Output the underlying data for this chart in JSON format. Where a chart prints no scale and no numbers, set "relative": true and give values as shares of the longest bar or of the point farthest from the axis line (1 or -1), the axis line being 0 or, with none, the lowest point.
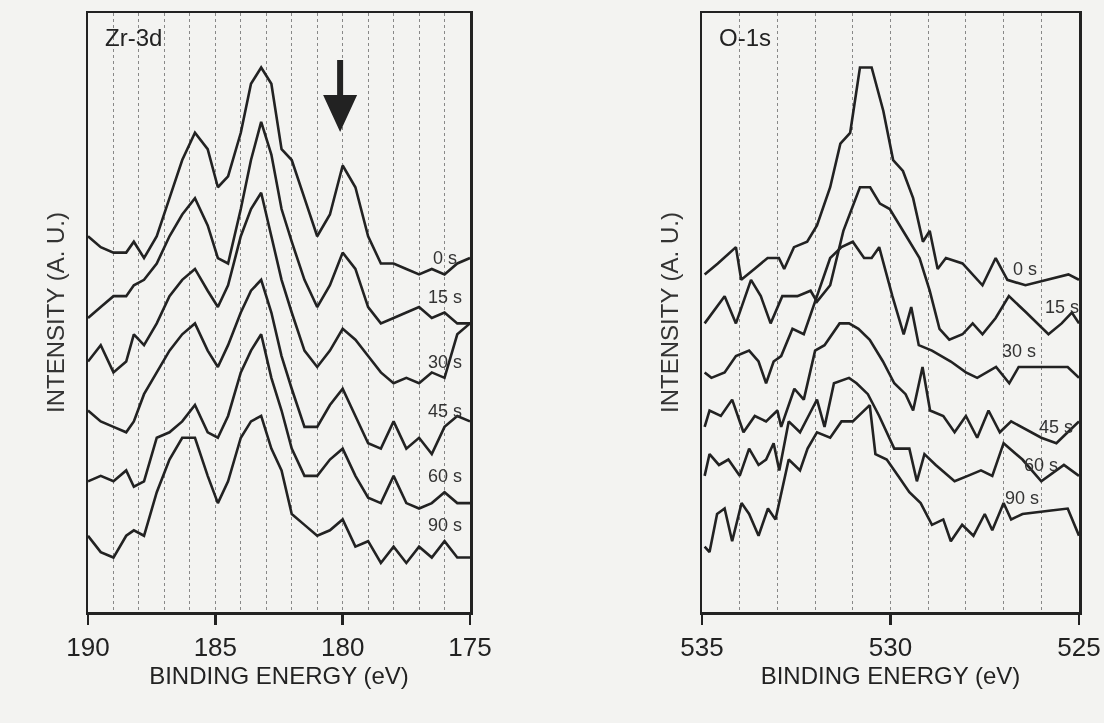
{
  "chart_data": [
    {
      "type": "line",
      "relative": true,
      "xlabel": "BINDING ENERGY (eV)",
      "ylabel": "INTENSITY (A. U.)",
      "annotations": [
        "Zr-3d"
      ],
      "xlim": [
        190,
        175
      ],
      "xticks": [
        190,
        {
          "value": 189,
          "label": null
        },
        {
          "value": 188,
          "label": null
        },
        {
          "value": 187,
          "label": null
        },
        {
          "value": 186,
          "label": null
        },
        185,
        {
          "value": 184,
          "label": null
        },
        {
          "value": 183,
          "label": null
        },
        {
          "value": 182,
          "label": null
        },
        {
          "value": 181,
          "label": null
        },
        180,
        {
          "value": 179,
          "label": null
        },
        {
          "value": 178,
          "label": null
        },
        {
          "value": 177,
          "label": null
        },
        {
          "value": 176,
          "label": null
        },
        175
      ],
      "tick_labels": "x",
      "grid": "x",
      "legend": false,
      "marker": "none",
      "line_style": "solid",
      "x": [
        190,
        189.5,
        189,
        188.5,
        188.2,
        187.8,
        187.3,
        186.8,
        186.3,
        185.8,
        185.3,
        184.9,
        184.5,
        184.0,
        183.6,
        183.2,
        182.8,
        182.4,
        182.0,
        181.5,
        181.0,
        180.5,
        180.0,
        179.5,
        179.0,
        178.5,
        178.0,
        177.5,
        177.0,
        176.5,
        176.0,
        175.5,
        175.0
      ],
      "series": [
        {
          "name": "0 s",
          "color": "#222222",
          "values": [
            0.69,
            0.67,
            0.66,
            0.66,
            0.68,
            0.65,
            0.69,
            0.76,
            0.83,
            0.88,
            0.85,
            0.78,
            0.8,
            0.88,
            0.97,
            1.0,
            0.97,
            0.85,
            0.83,
            0.76,
            0.69,
            0.73,
            0.82,
            0.78,
            0.69,
            0.64,
            0.64,
            0.63,
            0.62,
            0.63,
            0.62,
            0.64,
            0.65
          ]
        },
        {
          "name": "15 s",
          "color": "#222222",
          "values": [
            0.54,
            0.56,
            0.58,
            0.58,
            0.6,
            0.61,
            0.64,
            0.69,
            0.73,
            0.76,
            0.71,
            0.65,
            0.64,
            0.74,
            0.83,
            0.9,
            0.84,
            0.74,
            0.68,
            0.61,
            0.56,
            0.6,
            0.66,
            0.63,
            0.56,
            0.53,
            0.54,
            0.55,
            0.56,
            0.54,
            0.55,
            0.53,
            0.53
          ]
        },
        {
          "name": "30 s",
          "color": "#222222",
          "values": [
            0.46,
            0.49,
            0.44,
            0.46,
            0.51,
            0.49,
            0.53,
            0.58,
            0.61,
            0.63,
            0.59,
            0.56,
            0.6,
            0.69,
            0.74,
            0.77,
            0.69,
            0.61,
            0.55,
            0.48,
            0.45,
            0.48,
            0.52,
            0.5,
            0.47,
            0.44,
            0.42,
            0.43,
            0.42,
            0.44,
            0.43,
            0.51,
            0.53
          ]
        },
        {
          "name": "45 s",
          "color": "#222222",
          "values": [
            0.37,
            0.35,
            0.34,
            0.33,
            0.35,
            0.4,
            0.44,
            0.48,
            0.51,
            0.53,
            0.48,
            0.45,
            0.49,
            0.55,
            0.59,
            0.61,
            0.55,
            0.47,
            0.41,
            0.34,
            0.34,
            0.38,
            0.41,
            0.36,
            0.31,
            0.3,
            0.35,
            0.3,
            0.32,
            0.29,
            0.34,
            0.36,
            0.35
          ]
        },
        {
          "name": "60 s",
          "color": "#222222",
          "values": [
            0.24,
            0.25,
            0.24,
            0.26,
            0.23,
            0.24,
            0.32,
            0.33,
            0.35,
            0.38,
            0.33,
            0.32,
            0.36,
            0.44,
            0.48,
            0.51,
            0.43,
            0.37,
            0.3,
            0.25,
            0.25,
            0.28,
            0.3,
            0.25,
            0.21,
            0.2,
            0.25,
            0.2,
            0.19,
            0.2,
            0.22,
            0.2,
            0.2
          ]
        },
        {
          "name": "90 s",
          "color": "#222222",
          "values": [
            0.14,
            0.11,
            0.1,
            0.14,
            0.15,
            0.14,
            0.22,
            0.28,
            0.32,
            0.32,
            0.25,
            0.2,
            0.24,
            0.32,
            0.35,
            0.36,
            0.3,
            0.26,
            0.18,
            0.16,
            0.14,
            0.15,
            0.17,
            0.12,
            0.13,
            0.09,
            0.12,
            0.09,
            0.12,
            0.1,
            0.13,
            0.1,
            0.1
          ]
        }
      ]
    },
    {
      "type": "line",
      "relative": true,
      "xlabel": "BINDING ENERGY (eV)",
      "ylabel": "INTENSITY (A. U.)",
      "annotations": [
        "O-1s"
      ],
      "xlim": [
        535,
        525
      ],
      "xticks": [
        535,
        {
          "value": 534,
          "label": null
        },
        {
          "value": 533,
          "label": null
        },
        {
          "value": 532,
          "label": null
        },
        {
          "value": 531,
          "label": null
        },
        530,
        {
          "value": 529,
          "label": null
        },
        {
          "value": 528,
          "label": null
        },
        {
          "value": 527,
          "label": null
        },
        {
          "value": 526,
          "label": null
        },
        525
      ],
      "tick_labels": "x",
      "grid": "x",
      "legend": false,
      "marker": "none",
      "line_style": "solid",
      "series": [
        {
          "name": "0 s",
          "color": "#222222",
          "x": [
            534.93,
            534.58,
            534.1,
            533.96,
            533.61,
            533.26,
            532.96,
            532.82,
            532.56,
            532.21,
            531.95,
            531.6,
            531.33,
            531.07,
            530.81,
            530.5,
            530.19,
            529.93,
            529.67,
            529.4,
            529.14,
            528.96,
            528.75,
            528.53,
            528.09,
            527.56,
            527.21,
            526.9,
            526.42,
            525.28,
            525.0
          ],
          "values": [
            0.62,
            0.64,
            0.67,
            0.61,
            0.63,
            0.65,
            0.65,
            0.63,
            0.67,
            0.68,
            0.71,
            0.78,
            0.86,
            0.88,
            1.0,
            1.0,
            0.92,
            0.83,
            0.81,
            0.76,
            0.68,
            0.7,
            0.63,
            0.65,
            0.64,
            0.6,
            0.65,
            0.61,
            0.6,
            0.62,
            0.61
          ]
        },
        {
          "name": "15 s",
          "color": "#222222",
          "x": [
            534.93,
            534.4,
            534.1,
            533.7,
            533.44,
            533.18,
            532.87,
            532.47,
            532.12,
            531.95,
            531.6,
            531.25,
            530.81,
            530.54,
            530.28,
            530.02,
            529.58,
            529.23,
            528.96,
            528.7,
            528.44,
            528.09,
            527.82,
            527.56,
            527.21,
            526.86,
            526.4,
            525.81,
            525.46,
            525.19,
            525.0
          ],
          "values": [
            0.53,
            0.58,
            0.53,
            0.61,
            0.58,
            0.53,
            0.58,
            0.58,
            0.59,
            0.57,
            0.6,
            0.7,
            0.78,
            0.78,
            0.75,
            0.74,
            0.69,
            0.65,
            0.59,
            0.52,
            0.5,
            0.51,
            0.53,
            0.51,
            0.54,
            0.58,
            0.55,
            0.51,
            0.53,
            0.55,
            0.53
          ]
        },
        {
          "name": "30 s",
          "color": "#222222",
          "x": [
            534.93,
            534.75,
            534.4,
            534.1,
            533.75,
            533.5,
            533.3,
            533.1,
            532.9,
            532.6,
            532.3,
            531.95,
            531.6,
            531.3,
            531.0,
            530.7,
            530.5,
            530.3,
            529.95,
            529.65,
            529.45,
            529.25,
            528.9,
            528.4,
            528.0,
            527.7,
            527.2,
            526.85,
            526.6,
            525.3,
            525.0
          ],
          "values": [
            0.44,
            0.43,
            0.44,
            0.47,
            0.48,
            0.46,
            0.42,
            0.46,
            0.47,
            0.52,
            0.51,
            0.58,
            0.65,
            0.67,
            0.68,
            0.65,
            0.65,
            0.67,
            0.58,
            0.51,
            0.56,
            0.49,
            0.48,
            0.46,
            0.44,
            0.43,
            0.45,
            0.42,
            0.45,
            0.45,
            0.43
          ]
        },
        {
          "name": "45 s",
          "color": "#222222",
          "x": [
            534.93,
            534.8,
            534.5,
            534.2,
            533.9,
            533.6,
            533.3,
            533.0,
            532.9,
            532.55,
            532.3,
            532.0,
            531.75,
            531.35,
            531.1,
            530.85,
            530.55,
            530.2,
            529.9,
            529.6,
            529.4,
            529.15,
            528.95,
            528.6,
            528.3,
            528.0,
            527.7,
            527.4,
            527.1,
            526.8,
            526.0,
            525.6,
            525.3,
            525.0
          ],
          "values": [
            0.34,
            0.37,
            0.36,
            0.39,
            0.33,
            0.36,
            0.35,
            0.37,
            0.34,
            0.41,
            0.39,
            0.48,
            0.49,
            0.53,
            0.53,
            0.52,
            0.5,
            0.46,
            0.42,
            0.4,
            0.37,
            0.45,
            0.37,
            0.36,
            0.33,
            0.36,
            0.32,
            0.37,
            0.33,
            0.35,
            0.32,
            0.31,
            0.33,
            0.35
          ]
        },
        {
          "name": "60 s",
          "color": "#222222",
          "x": [
            534.93,
            534.8,
            534.55,
            534.3,
            534.0,
            533.75,
            533.5,
            533.3,
            533.1,
            532.95,
            532.7,
            532.4,
            532.1,
            531.95,
            531.75,
            531.5,
            531.1,
            530.9,
            530.6,
            530.3,
            529.9,
            529.5,
            529.3,
            529.1,
            528.8,
            528.3,
            527.95,
            527.6,
            527.3,
            527.0,
            526.5,
            526.0,
            525.4,
            525.0
          ],
          "values": [
            0.25,
            0.29,
            0.27,
            0.28,
            0.25,
            0.3,
            0.27,
            0.28,
            0.31,
            0.26,
            0.35,
            0.33,
            0.37,
            0.39,
            0.34,
            0.42,
            0.43,
            0.42,
            0.4,
            0.36,
            0.3,
            0.3,
            0.24,
            0.29,
            0.27,
            0.24,
            0.25,
            0.26,
            0.25,
            0.31,
            0.28,
            0.24,
            0.27,
            0.25
          ]
        },
        {
          "name": "90 s",
          "color": "#222222",
          "x": [
            534.93,
            534.8,
            534.6,
            534.4,
            534.2,
            533.95,
            533.75,
            533.5,
            533.25,
            533.05,
            532.7,
            532.4,
            532.2,
            531.95,
            531.6,
            531.3,
            531.0,
            530.55,
            530.4,
            530.1,
            529.8,
            529.5,
            529.2,
            528.9,
            528.6,
            528.4,
            528.1,
            527.8,
            527.5,
            527.3,
            527.0,
            526.8,
            526.5,
            525.3,
            525.0
          ],
          "values": [
            0.12,
            0.11,
            0.18,
            0.19,
            0.13,
            0.2,
            0.18,
            0.14,
            0.19,
            0.17,
            0.28,
            0.26,
            0.3,
            0.33,
            0.32,
            0.35,
            0.35,
            0.38,
            0.29,
            0.28,
            0.25,
            0.22,
            0.2,
            0.16,
            0.17,
            0.13,
            0.16,
            0.14,
            0.18,
            0.15,
            0.2,
            0.17,
            0.18,
            0.19,
            0.14
          ]
        }
      ]
    }
  ]
}
